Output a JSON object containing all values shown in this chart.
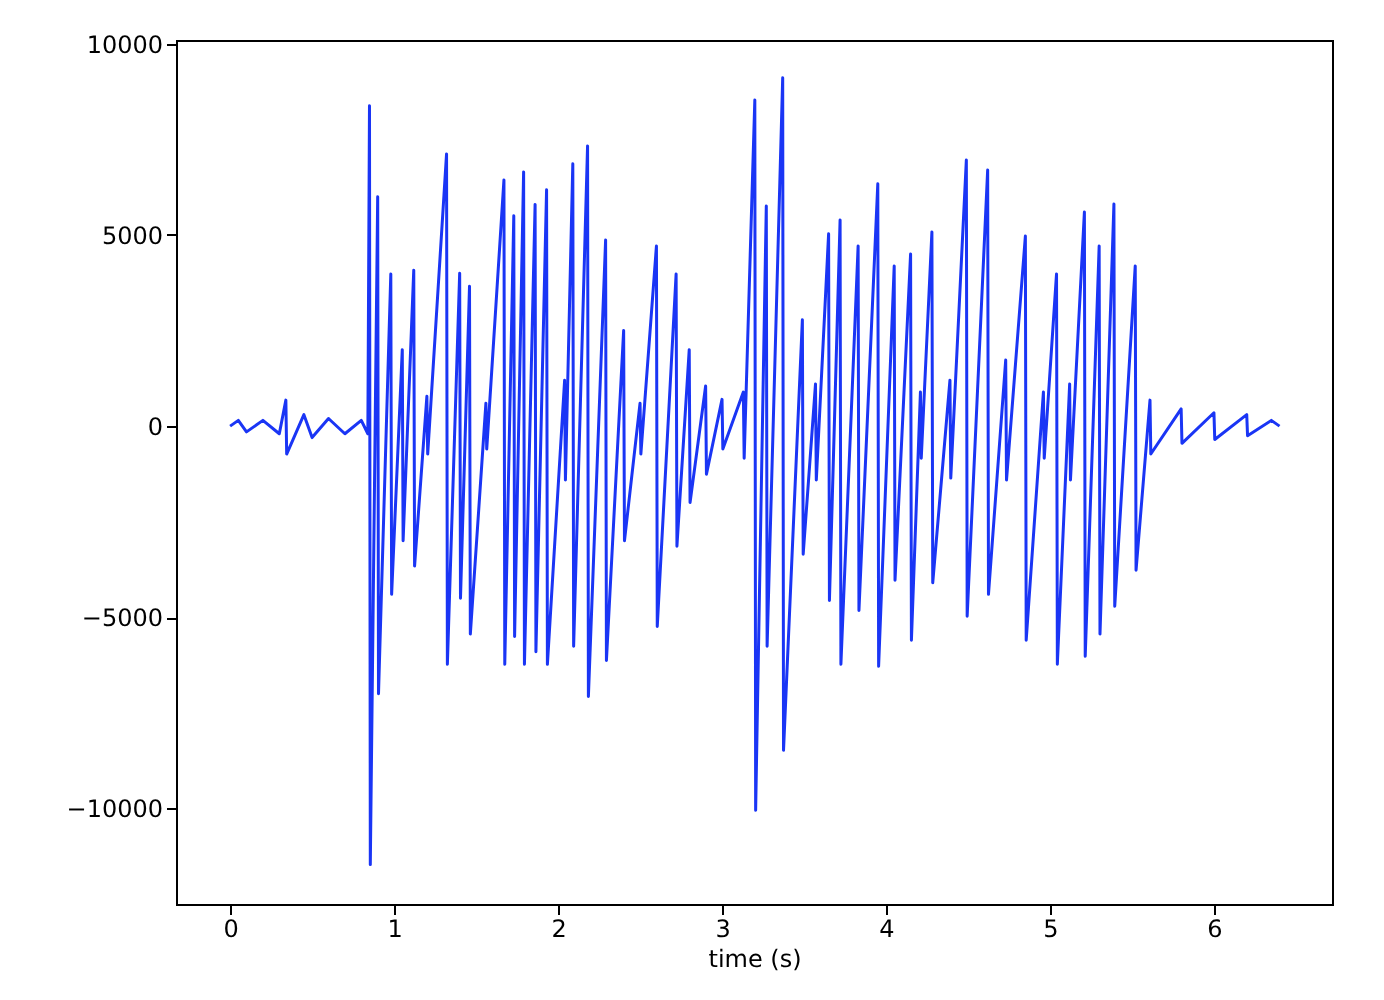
{
  "chart_data": {
    "type": "line",
    "xlabel": "time (s)",
    "xlim": [
      -0.33,
      6.72
    ],
    "xticks": [
      0,
      1,
      2,
      3,
      4,
      5,
      6
    ],
    "ylim": [
      -12500,
      10100
    ],
    "yticks": [
      -10000,
      -5000,
      0,
      5000,
      10000
    ],
    "grid": false,
    "marker": "none",
    "line_style": "solid",
    "series": [
      {
        "color": "#1a35f5",
        "x": [
          0.0,
          0.05,
          0.1,
          0.2,
          0.3,
          0.34,
          0.345,
          0.45,
          0.5,
          0.6,
          0.7,
          0.8,
          0.84,
          0.85,
          0.855,
          0.9,
          0.905,
          0.98,
          0.985,
          1.05,
          1.055,
          1.12,
          1.125,
          1.2,
          1.205,
          1.32,
          1.325,
          1.4,
          1.405,
          1.46,
          1.465,
          1.56,
          1.565,
          1.67,
          1.675,
          1.73,
          1.735,
          1.79,
          1.795,
          1.86,
          1.865,
          1.93,
          1.935,
          2.04,
          2.045,
          2.09,
          2.095,
          2.18,
          2.185,
          2.29,
          2.295,
          2.4,
          2.405,
          2.5,
          2.505,
          2.6,
          2.605,
          2.72,
          2.725,
          2.8,
          2.805,
          2.9,
          2.905,
          3.0,
          3.005,
          3.13,
          3.135,
          3.2,
          3.205,
          3.27,
          3.275,
          3.37,
          3.375,
          3.49,
          3.495,
          3.57,
          3.575,
          3.65,
          3.655,
          3.72,
          3.725,
          3.83,
          3.835,
          3.95,
          3.955,
          4.05,
          4.055,
          4.15,
          4.155,
          4.21,
          4.215,
          4.28,
          4.285,
          4.39,
          4.395,
          4.49,
          4.495,
          4.62,
          4.625,
          4.73,
          4.735,
          4.85,
          4.855,
          4.96,
          4.965,
          5.04,
          5.045,
          5.12,
          5.125,
          5.21,
          5.215,
          5.3,
          5.305,
          5.39,
          5.395,
          5.52,
          5.525,
          5.61,
          5.615,
          5.8,
          5.805,
          6.0,
          6.005,
          6.2,
          6.205,
          6.35,
          6.4
        ],
        "values": [
          0,
          150,
          -150,
          150,
          -200,
          680,
          -730,
          300,
          -300,
          200,
          -200,
          150,
          -200,
          8380,
          -11470,
          6000,
          -7000,
          3980,
          -4400,
          2000,
          -3000,
          4080,
          -3660,
          780,
          -730,
          7120,
          -6230,
          4000,
          -4500,
          3660,
          -5440,
          600,
          -600,
          6440,
          -6230,
          5500,
          -5500,
          6650,
          -6230,
          5800,
          -5900,
          6180,
          -6230,
          1200,
          -1410,
          6860,
          -5760,
          7330,
          -7070,
          4870,
          -6130,
          2500,
          -3000,
          600,
          -730,
          4710,
          -5240,
          3980,
          -3140,
          2000,
          -2000,
          1050,
          -1260,
          700,
          -600,
          890,
          -840,
          8530,
          -10050,
          5760,
          -5760,
          9110,
          -8480,
          2780,
          -3350,
          1100,
          -1410,
          5030,
          -4560,
          5390,
          -6230,
          4710,
          -4820,
          6340,
          -6280,
          4190,
          -4030,
          4500,
          -5600,
          890,
          -840,
          5080,
          -4100,
          1200,
          -1360,
          6960,
          -4970,
          6700,
          -4400,
          1730,
          -1410,
          4970,
          -5600,
          890,
          -840,
          3980,
          -6230,
          1100,
          -1410,
          5600,
          -6020,
          4710,
          -5440,
          5810,
          -4710,
          4190,
          -3770,
          680,
          -730,
          450,
          -450,
          350,
          -350,
          300,
          -250,
          150,
          0
        ]
      }
    ]
  }
}
